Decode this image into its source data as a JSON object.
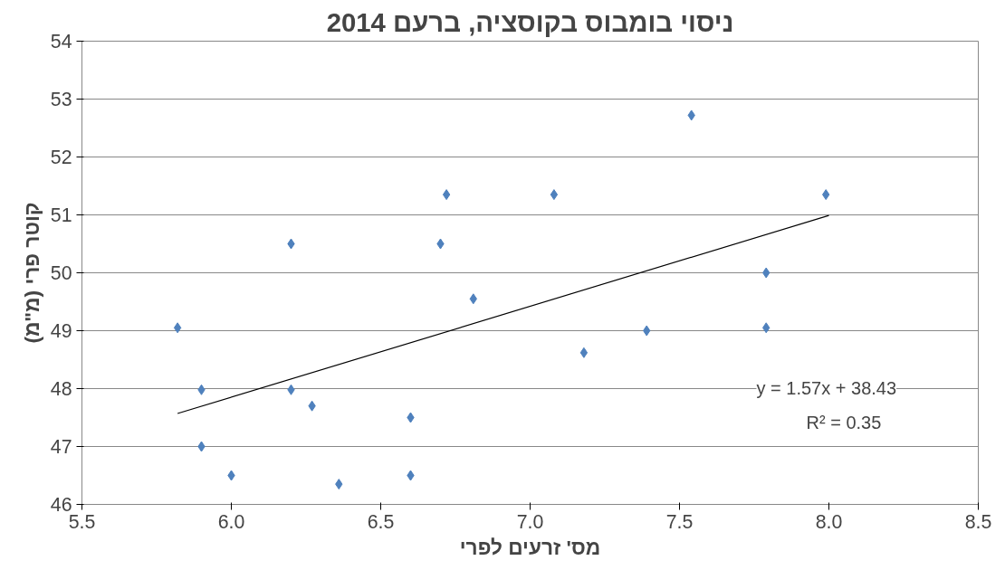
{
  "chart_data": {
    "type": "scatter",
    "title": "ניסוי בומבוס בקוסציה, ברעם 2014",
    "xlabel": "מס' זרעים לפרי",
    "ylabel": "קוטר פרי (מ\"מ)",
    "xlim": [
      5.5,
      8.5
    ],
    "xticks": [
      {
        "value": 5.5,
        "label": "5.5"
      },
      {
        "value": 6,
        "label": "6.0"
      },
      {
        "value": 6.5,
        "label": "6.5"
      },
      {
        "value": 7,
        "label": "7.0"
      },
      {
        "value": 7.5,
        "label": "7.5"
      },
      {
        "value": 8,
        "label": "8.0"
      },
      {
        "value": 8.5,
        "label": "8.5"
      }
    ],
    "ylim": [
      46,
      54
    ],
    "yticks": [
      46,
      47,
      48,
      49,
      50,
      51,
      52,
      53,
      54
    ],
    "grid": "y",
    "series": [
      {
        "marker": "diamond",
        "color": "#4f81bd",
        "x": [
          5.82,
          5.9,
          5.9,
          6.0,
          6.2,
          6.2,
          6.27,
          6.36,
          6.6,
          6.6,
          6.7,
          6.72,
          6.81,
          7.08,
          7.18,
          7.39,
          7.54,
          7.79,
          7.79,
          7.99
        ],
        "values": [
          49.05,
          47.98,
          47.0,
          46.5,
          50.5,
          47.98,
          47.7,
          46.35,
          47.5,
          46.5,
          50.5,
          51.35,
          49.55,
          51.35,
          48.62,
          49.0,
          52.72,
          50.0,
          49.05,
          51.35
        ]
      },
      {
        "type": "line",
        "color": "#000000",
        "x": [
          5.82,
          8.0
        ],
        "values": [
          47.57,
          50.99
        ]
      }
    ],
    "annotations": [
      "y = 1.57x + 38.43",
      "R² = 0.35"
    ]
  }
}
